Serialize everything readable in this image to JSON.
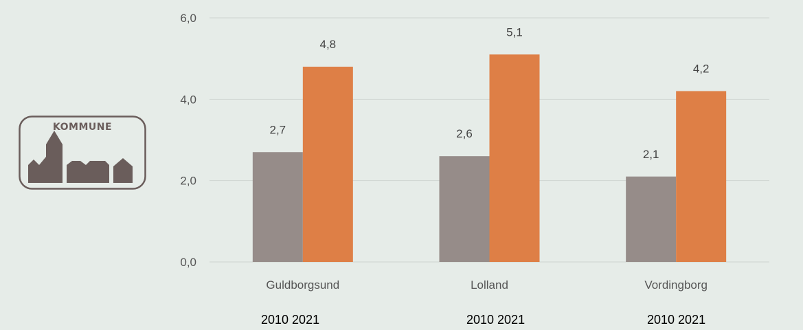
{
  "title_fragment": "...",
  "logo": {
    "text": "KOMMUNE",
    "icon": "town-silhouette-icon",
    "color": "#6a5d5b"
  },
  "year_labels": [
    "2010  2021",
    "2010  2021",
    "2010  2021"
  ],
  "chart_data": {
    "type": "bar",
    "categories": [
      "Guldborgsund",
      "Lolland",
      "Vordingborg"
    ],
    "series": [
      {
        "values": [
          2.7,
          2.6,
          2.1
        ],
        "color": "#968c89"
      },
      {
        "values": [
          4.8,
          5.1,
          4.2
        ],
        "color": "#de7f46"
      }
    ],
    "data_labels": [
      [
        "2,7",
        "2,6",
        "2,1"
      ],
      [
        "4,8",
        "5,1",
        "4,2"
      ]
    ],
    "yticks": [
      "0,0",
      "2,0",
      "4,0",
      "6,0"
    ],
    "ytick_values": [
      0,
      2,
      4,
      6
    ],
    "ylim": [
      0,
      6
    ],
    "grid": true,
    "legend": "none"
  }
}
